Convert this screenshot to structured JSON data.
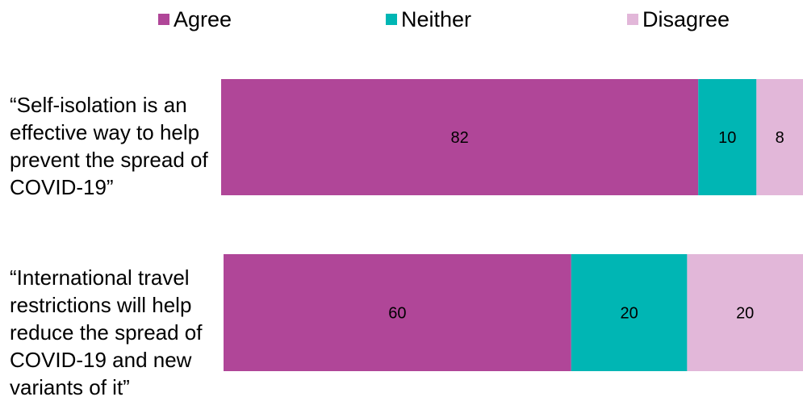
{
  "chart_data": {
    "type": "bar",
    "orientation": "horizontal",
    "stacked": true,
    "categories": [
      "“Self-isolation is an effective way to help prevent the spread of COVID-19”",
      "“International travel restrictions will help reduce the spread of COVID-19 and new variants of it”"
    ],
    "series": [
      {
        "name": "Agree",
        "values": [
          82,
          60
        ],
        "color": "#b04698"
      },
      {
        "name": "Neither",
        "values": [
          10,
          20
        ],
        "color": "#00b6b4"
      },
      {
        "name": "Disagree",
        "values": [
          8,
          20
        ],
        "color": "#e2b7d9"
      }
    ],
    "xlim": [
      0,
      100
    ],
    "grid": false,
    "legend": "top",
    "data_labels": true
  }
}
